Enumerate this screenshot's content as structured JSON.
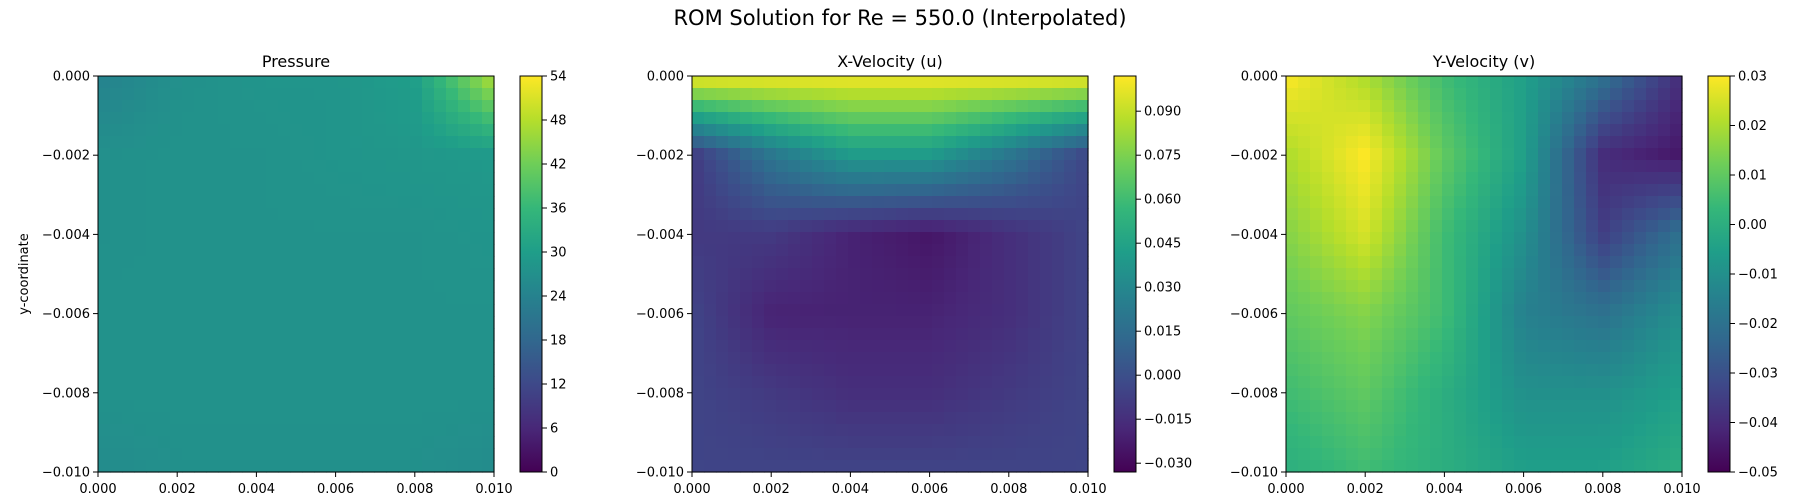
{
  "figure": {
    "suptitle": "ROM Solution for Re = 550.0 (Interpolated)"
  },
  "colormap": {
    "name": "viridis",
    "stops": [
      "#440154",
      "#482878",
      "#3e4989",
      "#31688e",
      "#26828e",
      "#1f9e89",
      "#35b779",
      "#6ece58",
      "#b5de2b",
      "#fde725"
    ]
  },
  "chart_data": [
    {
      "type": "heatmap",
      "title": "Pressure",
      "xlabel": "",
      "ylabel": "y-coordinate",
      "xlim": [
        0.0,
        0.01
      ],
      "ylim": [
        -0.01,
        0.0
      ],
      "xticks": [
        "0.000",
        "0.002",
        "0.004",
        "0.006",
        "0.008",
        "0.010"
      ],
      "yticks": [
        "0.000",
        "−0.002",
        "−0.004",
        "−0.006",
        "−0.008",
        "−0.010"
      ],
      "colorbar": {
        "min": 0,
        "max": 54,
        "ticks": [
          0,
          6,
          12,
          18,
          24,
          30,
          36,
          42,
          48,
          54
        ],
        "tick_labels": [
          "0",
          "6",
          "12",
          "18",
          "24",
          "30",
          "36",
          "42",
          "48",
          "54"
        ]
      },
      "field_sample": {
        "x": [
          0.0,
          0.002,
          0.004,
          0.006,
          0.008,
          0.01
        ],
        "y": [
          0.0,
          -0.002,
          -0.004,
          -0.006,
          -0.008,
          -0.01
        ],
        "z": [
          [
            24,
            27,
            28,
            28,
            30,
            48
          ],
          [
            27,
            27.5,
            27.5,
            28,
            28.5,
            29
          ],
          [
            27,
            27.5,
            27.5,
            27.5,
            27.5,
            28
          ],
          [
            27.5,
            27.5,
            27.5,
            27.5,
            27.5,
            27.5
          ],
          [
            27.5,
            27.5,
            27.5,
            27.5,
            27.5,
            27.5
          ],
          [
            26,
            27,
            27,
            27,
            27,
            26
          ]
        ]
      }
    },
    {
      "type": "heatmap",
      "title": "X-Velocity (u)",
      "xlabel": "",
      "ylabel": "",
      "xlim": [
        0.0,
        0.01
      ],
      "ylim": [
        -0.01,
        0.0
      ],
      "xticks": [
        "0.000",
        "0.002",
        "0.004",
        "0.006",
        "0.008",
        "0.010"
      ],
      "yticks": [
        "0.000",
        "−0.002",
        "−0.004",
        "−0.006",
        "−0.008",
        "−0.010"
      ],
      "colorbar": {
        "min": -0.033,
        "max": 0.102,
        "ticks": [
          -0.03,
          -0.015,
          0.0,
          0.015,
          0.03,
          0.045,
          0.06,
          0.075,
          0.09
        ],
        "tick_labels": [
          "−0.030",
          "−0.015",
          "0.000",
          "0.015",
          "0.030",
          "0.045",
          "0.060",
          "0.075",
          "0.090"
        ]
      },
      "field_sample": {
        "x": [
          0.0,
          0.002,
          0.004,
          0.006,
          0.008,
          0.01
        ],
        "y": [
          0.0,
          -0.002,
          -0.004,
          -0.006,
          -0.008,
          -0.01
        ],
        "z": [
          [
            0.1,
            0.1,
            0.1,
            0.1,
            0.1,
            0.1
          ],
          [
            -0.01,
            0.02,
            0.04,
            0.04,
            0.02,
            -0.005
          ],
          [
            -0.01,
            -0.01,
            -0.02,
            -0.025,
            -0.015,
            -0.005
          ],
          [
            -0.005,
            -0.02,
            -0.02,
            -0.02,
            -0.015,
            -0.005
          ],
          [
            -0.005,
            -0.01,
            -0.015,
            -0.015,
            -0.01,
            -0.005
          ],
          [
            -0.005,
            -0.005,
            -0.005,
            -0.005,
            -0.005,
            -0.005
          ]
        ]
      }
    },
    {
      "type": "heatmap",
      "title": "Y-Velocity (v)",
      "xlabel": "",
      "ylabel": "",
      "xlim": [
        0.0,
        0.01
      ],
      "ylim": [
        -0.01,
        0.0
      ],
      "xticks": [
        "0.000",
        "0.002",
        "0.004",
        "0.006",
        "0.008",
        "0.010"
      ],
      "yticks": [
        "0.000",
        "−0.002",
        "−0.004",
        "−0.006",
        "−0.008",
        "−0.010"
      ],
      "colorbar": {
        "min": -0.05,
        "max": 0.03,
        "ticks": [
          -0.05,
          -0.04,
          -0.03,
          -0.02,
          -0.01,
          0.0,
          0.01,
          0.02,
          0.03
        ],
        "tick_labels": [
          "−0.05",
          "−0.04",
          "−0.03",
          "−0.02",
          "−0.01",
          "0.00",
          "0.01",
          "0.02",
          "0.03"
        ]
      },
      "field_sample": {
        "x": [
          0.0,
          0.002,
          0.004,
          0.006,
          0.008,
          0.01
        ],
        "y": [
          0.0,
          -0.002,
          -0.004,
          -0.006,
          -0.008,
          -0.01
        ],
        "z": [
          [
            0.03,
            0.02,
            0.005,
            -0.005,
            -0.02,
            -0.04
          ],
          [
            0.02,
            0.03,
            0.01,
            -0.005,
            -0.04,
            -0.045
          ],
          [
            0.015,
            0.025,
            0.005,
            -0.01,
            -0.035,
            -0.02
          ],
          [
            0.01,
            0.015,
            0.005,
            -0.015,
            -0.02,
            -0.01
          ],
          [
            0.005,
            0.01,
            0.0,
            -0.01,
            -0.01,
            -0.005
          ],
          [
            0.0,
            0.005,
            0.0,
            -0.005,
            -0.005,
            0.0
          ]
        ]
      }
    }
  ]
}
